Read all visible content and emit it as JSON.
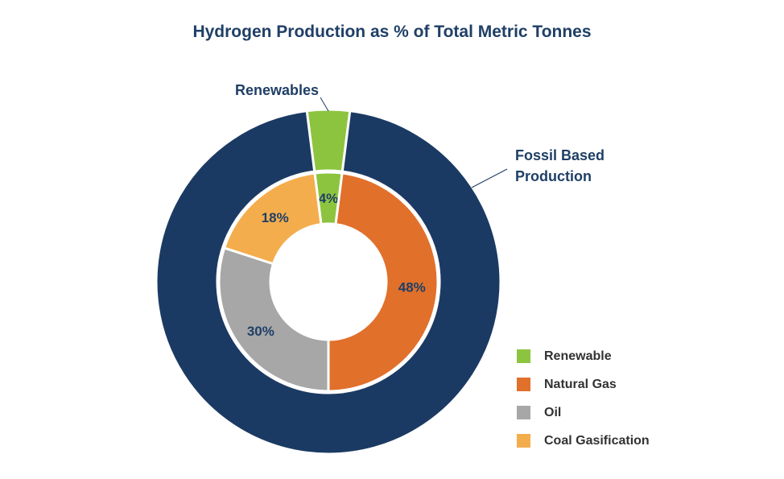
{
  "chart_data": {
    "type": "pie",
    "title": "Hydrogen Production as % of Total Metric Tonnes",
    "colors": {
      "background": "#ffffff",
      "title": "#1f3f66",
      "outer_fossil": "#1b3a63",
      "renewable": "#8dc43f",
      "natural_gas": "#e1702b",
      "oil": "#a7a7a7",
      "coal_gasification": "#f4ad4c",
      "label_text": "#1f3f66",
      "legend_text": "#323232"
    },
    "rings": [
      {
        "name": "outer",
        "slices": [
          {
            "label": "Renewables",
            "value": 4,
            "color": "#8dc43f"
          },
          {
            "label": "Fossil Based Production",
            "value": 96,
            "color": "#1b3a63"
          }
        ]
      },
      {
        "name": "inner",
        "slices": [
          {
            "label": "4%",
            "value": 4,
            "color": "#8dc43f"
          },
          {
            "label": "48%",
            "value": 48,
            "color": "#e1702b"
          },
          {
            "label": "30%",
            "value": 30,
            "color": "#a7a7a7"
          },
          {
            "label": "18%",
            "value": 18,
            "color": "#f4ad4c"
          }
        ]
      }
    ],
    "callouts": [
      {
        "label": "Renewables",
        "lines": [
          "Renewables"
        ]
      },
      {
        "label": "Fossil Based Production",
        "lines": [
          "Fossil Based",
          "Production"
        ]
      }
    ],
    "legend": [
      {
        "label": "Renewable",
        "color": "#8dc43f"
      },
      {
        "label": "Natural Gas",
        "color": "#e1702b"
      },
      {
        "label": "Oil",
        "color": "#a7a7a7"
      },
      {
        "label": "Coal Gasification",
        "color": "#f4ad4c"
      }
    ],
    "legend_position": "bottom-right"
  }
}
